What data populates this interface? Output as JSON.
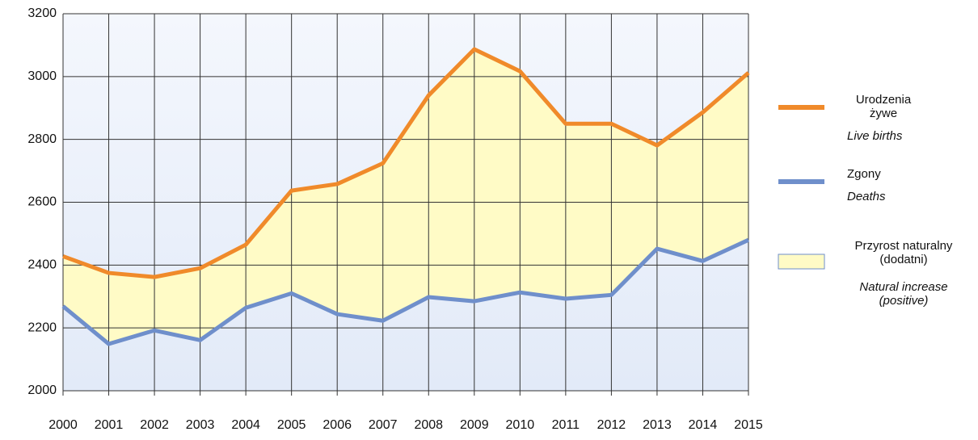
{
  "chart_data": {
    "type": "line",
    "x": [
      2000,
      2001,
      2002,
      2003,
      2004,
      2005,
      2006,
      2007,
      2008,
      2009,
      2010,
      2011,
      2012,
      2013,
      2014,
      2015
    ],
    "series": [
      {
        "name": "Urodzenia żywe",
        "name_en": "Live births",
        "color": "#f08a2a",
        "values": [
          2428,
          2375,
          2362,
          2390,
          2465,
          2637,
          2658,
          2724,
          2940,
          3087,
          3017,
          2850,
          2850,
          2781,
          2886,
          3012
        ]
      },
      {
        "name": "Zgony",
        "name_en": "Deaths",
        "color": "#6f8fcb",
        "values": [
          2269,
          2149,
          2192,
          2161,
          2264,
          2310,
          2244,
          2223,
          2298,
          2285,
          2313,
          2293,
          2305,
          2452,
          2413,
          2480
        ]
      }
    ],
    "fill_between": {
      "name": "Przyrost naturalny (dodatni)",
      "name_en": "Natural increase (positive)",
      "color": "#fffbc6"
    },
    "xlim": [
      2000,
      2015
    ],
    "xticks": [
      2000,
      2001,
      2002,
      2003,
      2004,
      2005,
      2006,
      2007,
      2008,
      2009,
      2010,
      2011,
      2012,
      2013,
      2014,
      2015
    ],
    "ylim": [
      2000,
      3200
    ],
    "yticks": [
      2000,
      2200,
      2400,
      2600,
      2800,
      3000,
      3200
    ],
    "grid": true
  }
}
